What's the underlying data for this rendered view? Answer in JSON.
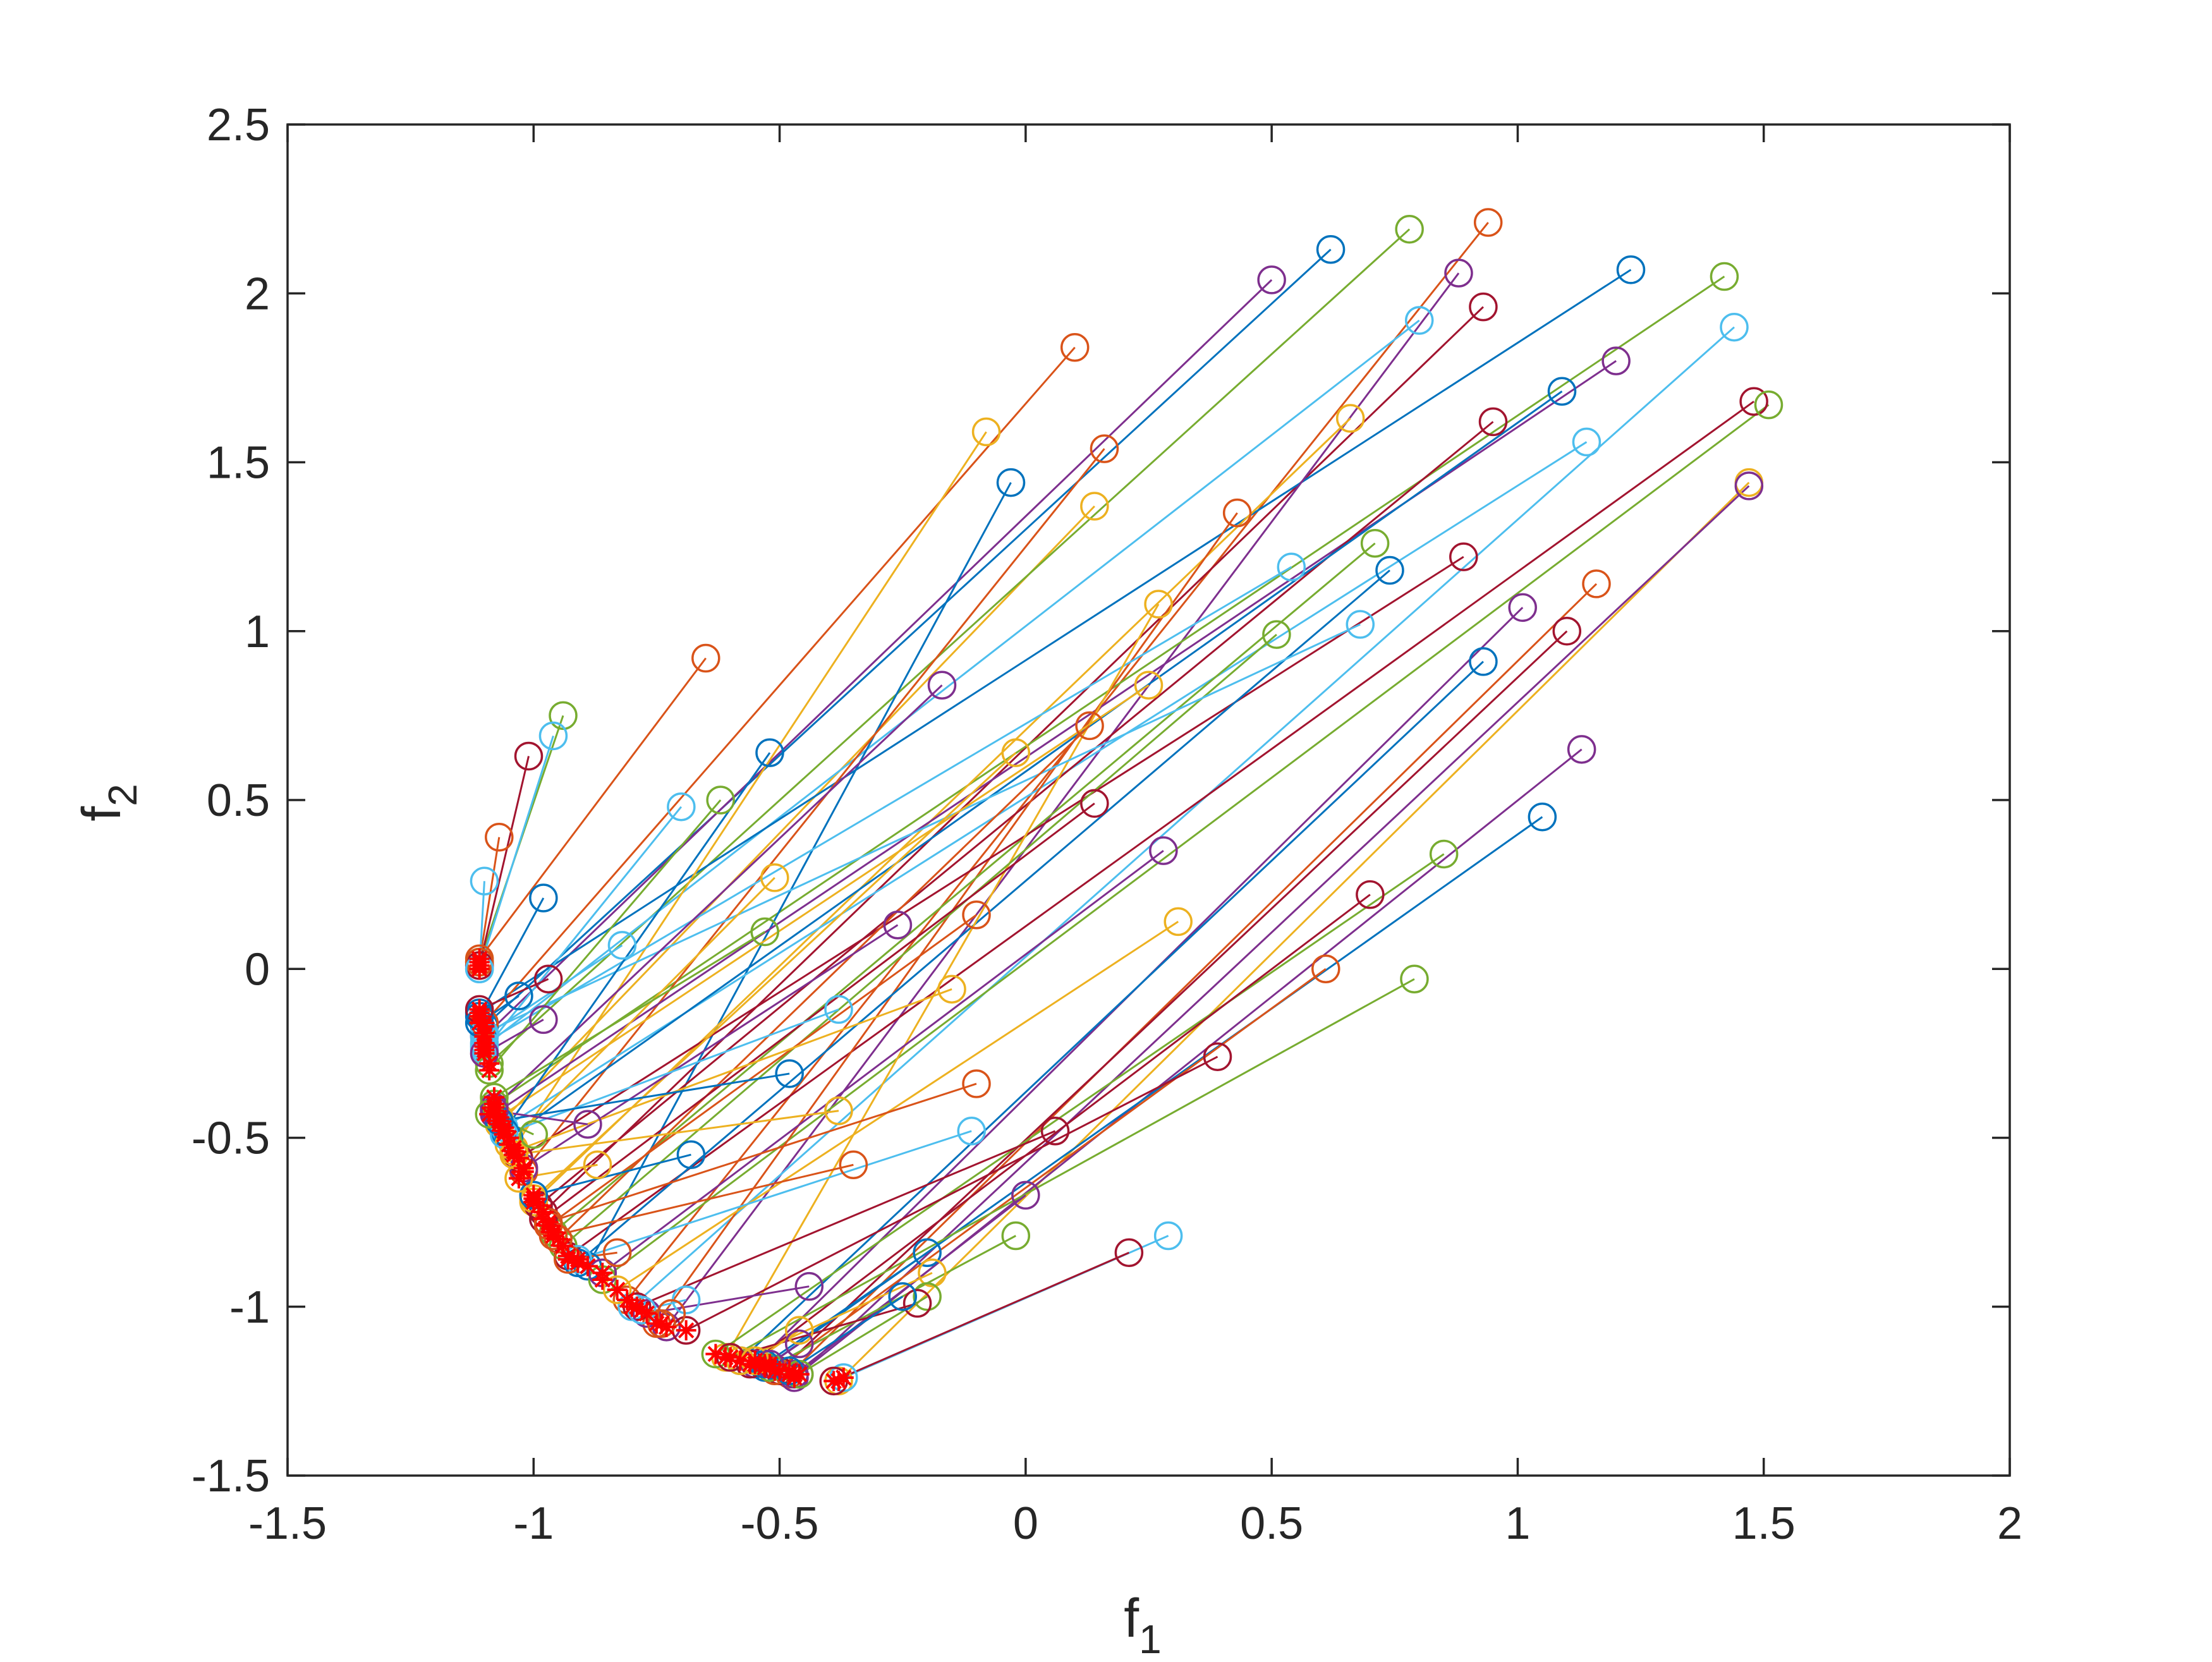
{
  "chart_data": {
    "type": "scatter",
    "title": "",
    "xlabel": "f1",
    "xlabel_main": "f",
    "xlabel_sub": "1",
    "ylabel": "f2",
    "ylabel_main": "f",
    "ylabel_sub": "2",
    "xlim": [
      -1.5,
      2
    ],
    "ylim": [
      -1.5,
      2.5
    ],
    "xticks": [
      -1.5,
      -1,
      -0.5,
      0,
      0.5,
      1,
      1.5,
      2
    ],
    "xtick_labels": [
      "-1.5",
      "-1",
      "-0.5",
      "0",
      "0.5",
      "1",
      "1.5",
      "2"
    ],
    "yticks": [
      -1.5,
      -1,
      -0.5,
      0,
      0.5,
      1,
      1.5,
      2,
      2.5
    ],
    "ytick_labels": [
      "-1.5",
      "-1",
      "-0.5",
      "0",
      "0.5",
      "1",
      "1.5",
      "2",
      "2.5"
    ],
    "grid": false,
    "box": true,
    "legend": "none",
    "start_marker": "open-circle",
    "end_marker": "red-asterisk",
    "end_color": "#ff0000",
    "colors": [
      "#0072bd",
      "#d95319",
      "#edb120",
      "#7e2f8e",
      "#77ac30",
      "#4dbeee",
      "#a2142f"
    ],
    "series": [
      {
        "start": [
          0.62,
          2.13
        ],
        "end": [
          -1.1,
          -0.17
        ]
      },
      {
        "start": [
          0.94,
          2.21
        ],
        "end": [
          -0.81,
          -0.98
        ]
      },
      {
        "start": [
          0.14,
          1.37
        ],
        "end": [
          -1.07,
          -0.46
        ]
      },
      {
        "start": [
          0.5,
          2.04
        ],
        "end": [
          -1.1,
          -0.2
        ]
      },
      {
        "start": [
          0.78,
          2.19
        ],
        "end": [
          -1.09,
          -0.28
        ]
      },
      {
        "start": [
          0.8,
          1.92
        ],
        "end": [
          -1.1,
          -0.23
        ]
      },
      {
        "start": [
          0.93,
          1.96
        ],
        "end": [
          -0.98,
          -0.72
        ]
      },
      {
        "start": [
          1.23,
          2.07
        ],
        "end": [
          -1.11,
          -0.13
        ]
      },
      {
        "start": [
          0.1,
          1.84
        ],
        "end": [
          -1.1,
          -0.16
        ]
      },
      {
        "start": [
          -0.08,
          1.59
        ],
        "end": [
          -1.04,
          -0.53
        ]
      },
      {
        "start": [
          0.88,
          2.06
        ],
        "end": [
          -0.73,
          -1.06
        ]
      },
      {
        "start": [
          1.42,
          2.05
        ],
        "end": [
          -1.08,
          -0.4
        ]
      },
      {
        "start": [
          1.44,
          1.9
        ],
        "end": [
          -0.8,
          -1.0
        ]
      },
      {
        "start": [
          1.48,
          1.68
        ],
        "end": [
          -0.93,
          -0.85
        ]
      },
      {
        "start": [
          -0.03,
          1.44
        ],
        "end": [
          -0.89,
          -0.88
        ]
      },
      {
        "start": [
          0.16,
          1.54
        ],
        "end": [
          -1.02,
          -0.6
        ]
      },
      {
        "start": [
          0.66,
          1.63
        ],
        "end": [
          -1.0,
          -0.69
        ]
      },
      {
        "start": [
          1.2,
          1.8
        ],
        "end": [
          -1.08,
          -0.43
        ]
      },
      {
        "start": [
          1.51,
          1.67
        ],
        "end": [
          -0.86,
          -0.92
        ]
      },
      {
        "start": [
          1.14,
          1.56
        ],
        "end": [
          -1.06,
          -0.47
        ]
      },
      {
        "start": [
          0.95,
          1.62
        ],
        "end": [
          -0.99,
          -0.7
        ]
      },
      {
        "start": [
          1.09,
          1.71
        ],
        "end": [
          -1.05,
          -0.5
        ]
      },
      {
        "start": [
          0.43,
          1.35
        ],
        "end": [
          -0.75,
          -1.05
        ]
      },
      {
        "start": [
          1.47,
          1.44
        ],
        "end": [
          -0.38,
          -1.22
        ]
      },
      {
        "start": [
          1.47,
          1.43
        ],
        "end": [
          -0.46,
          -1.2
        ]
      },
      {
        "start": [
          0.71,
          1.26
        ],
        "end": [
          -0.96,
          -0.78
        ]
      },
      {
        "start": [
          0.54,
          1.19
        ],
        "end": [
          -1.1,
          -0.22
        ]
      },
      {
        "start": [
          0.89,
          1.22
        ],
        "end": [
          -1.03,
          -0.56
        ]
      },
      {
        "start": [
          0.74,
          1.18
        ],
        "end": [
          -0.91,
          -0.87
        ]
      },
      {
        "start": [
          1.16,
          1.14
        ],
        "end": [
          -0.48,
          -1.2
        ]
      },
      {
        "start": [
          0.27,
          1.08
        ],
        "end": [
          -0.61,
          -1.15
        ]
      },
      {
        "start": [
          1.01,
          1.07
        ],
        "end": [
          -0.55,
          -1.17
        ]
      },
      {
        "start": [
          0.51,
          0.99
        ],
        "end": [
          -0.94,
          -0.82
        ]
      },
      {
        "start": [
          0.68,
          1.02
        ],
        "end": [
          -1.1,
          -0.19
        ]
      },
      {
        "start": [
          1.1,
          1.0
        ],
        "end": [
          -0.5,
          -1.19
        ]
      },
      {
        "start": [
          0.93,
          0.91
        ],
        "end": [
          -0.58,
          -1.16
        ]
      },
      {
        "start": [
          -0.65,
          0.92
        ],
        "end": [
          -1.11,
          0.03
        ]
      },
      {
        "start": [
          0.25,
          0.84
        ],
        "end": [
          -1.07,
          -0.44
        ]
      },
      {
        "start": [
          -0.17,
          0.84
        ],
        "end": [
          -1.08,
          -0.41
        ]
      },
      {
        "start": [
          -0.94,
          0.75
        ],
        "end": [
          -1.11,
          0.02
        ]
      },
      {
        "start": [
          -0.96,
          0.69
        ],
        "end": [
          -1.11,
          0.0
        ]
      },
      {
        "start": [
          -1.01,
          0.63
        ],
        "end": [
          -1.11,
          0.01
        ]
      },
      {
        "start": [
          -0.52,
          0.64
        ],
        "end": [
          -1.06,
          -0.48
        ]
      },
      {
        "start": [
          0.13,
          0.72
        ],
        "end": [
          -0.95,
          -0.8
        ]
      },
      {
        "start": [
          -0.02,
          0.64
        ],
        "end": [
          -1.0,
          -0.68
        ]
      },
      {
        "start": [
          1.13,
          0.65
        ],
        "end": [
          -0.47,
          -1.21
        ]
      },
      {
        "start": [
          -0.62,
          0.5
        ],
        "end": [
          -1.09,
          -0.3
        ]
      },
      {
        "start": [
          -0.7,
          0.48
        ],
        "end": [
          -1.1,
          -0.24
        ]
      },
      {
        "start": [
          0.14,
          0.49
        ],
        "end": [
          -0.98,
          -0.74
        ]
      },
      {
        "start": [
          1.05,
          0.45
        ],
        "end": [
          -0.53,
          -1.18
        ]
      },
      {
        "start": [
          -1.07,
          0.39
        ],
        "end": [
          -1.11,
          0.02
        ]
      },
      {
        "start": [
          -0.51,
          0.27
        ],
        "end": [
          -1.05,
          -0.52
        ]
      },
      {
        "start": [
          0.28,
          0.35
        ],
        "end": [
          -0.86,
          -0.9
        ]
      },
      {
        "start": [
          0.85,
          0.34
        ],
        "end": [
          -0.63,
          -1.14
        ]
      },
      {
        "start": [
          -1.1,
          0.26
        ],
        "end": [
          -1.11,
          0.0
        ]
      },
      {
        "start": [
          0.7,
          0.22
        ],
        "end": [
          -0.56,
          -1.17
        ]
      },
      {
        "start": [
          -0.98,
          0.21
        ],
        "end": [
          -1.11,
          -0.14
        ]
      },
      {
        "start": [
          -0.1,
          0.16
        ],
        "end": [
          -0.97,
          -0.76
        ]
      },
      {
        "start": [
          0.31,
          0.14
        ],
        "end": [
          -0.83,
          -0.95
        ]
      },
      {
        "start": [
          -0.26,
          0.13
        ],
        "end": [
          -1.02,
          -0.59
        ]
      },
      {
        "start": [
          -0.53,
          0.11
        ],
        "end": [
          -1.08,
          -0.38
        ]
      },
      {
        "start": [
          -0.82,
          0.07
        ],
        "end": [
          -1.1,
          -0.2
        ]
      },
      {
        "start": [
          -0.97,
          -0.03
        ],
        "end": [
          -1.11,
          -0.12
        ]
      },
      {
        "start": [
          -1.03,
          -0.08
        ],
        "end": [
          -1.11,
          -0.16
        ]
      },
      {
        "start": [
          0.61,
          0.0
        ],
        "end": [
          -0.51,
          -1.19
        ]
      },
      {
        "start": [
          -0.15,
          -0.06
        ],
        "end": [
          -1.04,
          -0.54
        ]
      },
      {
        "start": [
          -0.98,
          -0.15
        ],
        "end": [
          -1.1,
          -0.25
        ]
      },
      {
        "start": [
          0.79,
          -0.03
        ],
        "end": [
          -0.6,
          -1.15
        ]
      },
      {
        "start": [
          -0.38,
          -0.12
        ],
        "end": [
          -1.06,
          -0.49
        ]
      },
      {
        "start": [
          0.39,
          -0.26
        ],
        "end": [
          -0.69,
          -1.07
        ]
      },
      {
        "start": [
          -0.48,
          -0.31
        ],
        "end": [
          -1.07,
          -0.45
        ]
      },
      {
        "start": [
          -0.1,
          -0.34
        ],
        "end": [
          -0.97,
          -0.75
        ]
      },
      {
        "start": [
          -0.38,
          -0.42
        ],
        "end": [
          -1.04,
          -0.55
        ]
      },
      {
        "start": [
          -0.89,
          -0.46
        ],
        "end": [
          -1.08,
          -0.42
        ]
      },
      {
        "start": [
          -1.0,
          -0.49
        ],
        "end": [
          -1.09,
          -0.43
        ]
      },
      {
        "start": [
          -0.11,
          -0.48
        ],
        "end": [
          -0.91,
          -0.86
        ]
      },
      {
        "start": [
          0.06,
          -0.48
        ],
        "end": [
          -0.79,
          -1.0
        ]
      },
      {
        "start": [
          -0.68,
          -0.55
        ],
        "end": [
          -1.0,
          -0.67
        ]
      },
      {
        "start": [
          -0.35,
          -0.58
        ],
        "end": [
          -0.96,
          -0.79
        ]
      },
      {
        "start": [
          -0.87,
          -0.58
        ],
        "end": [
          -1.03,
          -0.62
        ]
      },
      {
        "start": [
          0.0,
          -0.67
        ],
        "end": [
          -0.47,
          -1.2
        ]
      },
      {
        "start": [
          -0.02,
          -0.79
        ],
        "end": [
          -0.52,
          -1.18
        ]
      },
      {
        "start": [
          0.29,
          -0.79
        ],
        "end": [
          -0.37,
          -1.21
        ]
      },
      {
        "start": [
          0.21,
          -0.84
        ],
        "end": [
          -0.39,
          -1.22
        ]
      },
      {
        "start": [
          -0.2,
          -0.84
        ],
        "end": [
          -0.53,
          -1.17
        ]
      },
      {
        "start": [
          -0.83,
          -0.84
        ],
        "end": [
          -0.93,
          -0.86
        ]
      },
      {
        "start": [
          -0.19,
          -0.9
        ],
        "end": [
          -0.58,
          -1.16
        ]
      },
      {
        "start": [
          -0.44,
          -0.94
        ],
        "end": [
          -0.77,
          -1.02
        ]
      },
      {
        "start": [
          -0.2,
          -0.97
        ],
        "end": [
          -0.46,
          -1.2
        ]
      },
      {
        "start": [
          -0.69,
          -0.98
        ],
        "end": [
          -0.78,
          -1.01
        ]
      },
      {
        "start": [
          -0.22,
          -0.99
        ],
        "end": [
          -0.6,
          -1.15
        ]
      },
      {
        "start": [
          -0.25,
          -0.97
        ],
        "end": [
          -0.48,
          -1.19
        ]
      },
      {
        "start": [
          -0.72,
          -1.02
        ],
        "end": [
          -0.74,
          -1.05
        ]
      },
      {
        "start": [
          -0.46,
          -1.07
        ],
        "end": [
          -0.55,
          -1.16
        ]
      },
      {
        "start": [
          -0.46,
          -1.11
        ],
        "end": [
          -0.52,
          -1.17
        ]
      }
    ]
  }
}
